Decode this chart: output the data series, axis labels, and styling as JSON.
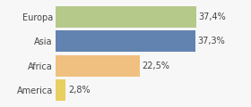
{
  "categories": [
    "Europa",
    "Asia",
    "Africa",
    "America"
  ],
  "values": [
    37.4,
    37.3,
    22.5,
    2.8
  ],
  "labels": [
    "37,4%",
    "37,3%",
    "22,5%",
    "2,8%"
  ],
  "bar_colors": [
    "#b5c98a",
    "#6283b0",
    "#f0c080",
    "#e8d060"
  ],
  "background_color": "#f7f7f7",
  "xlim": [
    0,
    44
  ],
  "label_fontsize": 7.0,
  "tick_fontsize": 7.0,
  "bar_height": 0.88
}
